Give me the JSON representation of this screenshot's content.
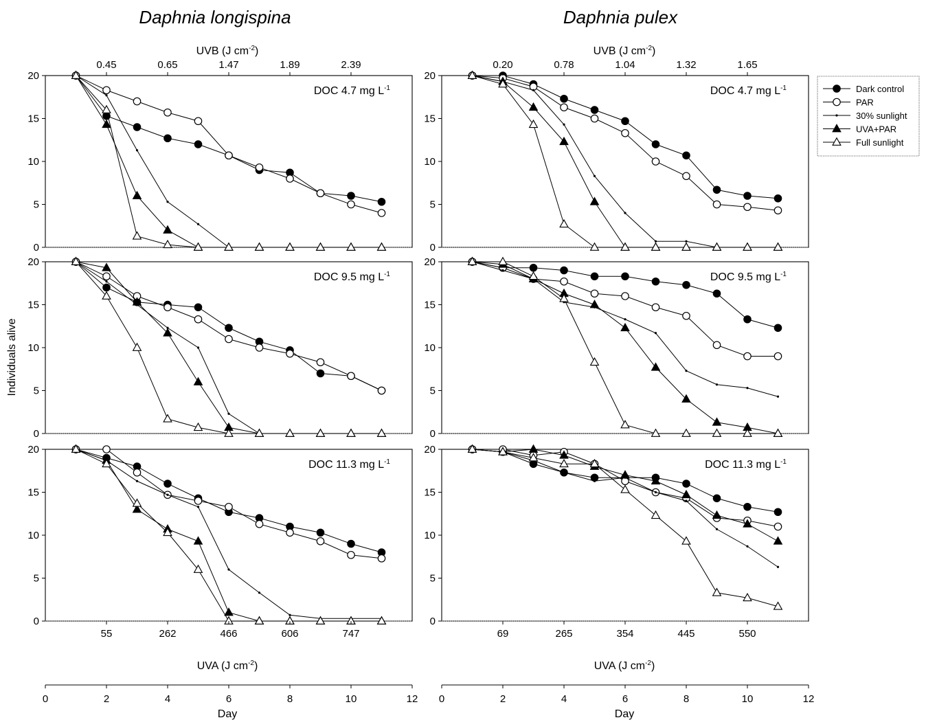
{
  "panels_layout": {
    "columns": [
      {
        "species": "Daphnia longispina",
        "top_axis_label": "UVB (J cm",
        "top_axis_label_sup": "-2",
        "top_axis_label_end": ")",
        "uvb_ticks": [
          {
            "day": 2,
            "label": "0.45"
          },
          {
            "day": 4,
            "label": "0.65"
          },
          {
            "day": 6,
            "label": "1.47"
          },
          {
            "day": 8,
            "label": "1.89"
          },
          {
            "day": 10,
            "label": "2.39"
          }
        ],
        "uva_label": "UVA (J cm",
        "uva_label_sup": "-2",
        "uva_label_end": ")",
        "uva_ticks": [
          {
            "day": 2,
            "label": "55"
          },
          {
            "day": 4,
            "label": "262"
          },
          {
            "day": 6,
            "label": "466"
          },
          {
            "day": 8,
            "label": "606"
          },
          {
            "day": 10,
            "label": "747"
          }
        ]
      },
      {
        "species": "Daphnia pulex",
        "top_axis_label": "UVB (J cm",
        "top_axis_label_sup": "-2",
        "top_axis_label_end": ")",
        "uvb_ticks": [
          {
            "day": 2,
            "label": "0.20"
          },
          {
            "day": 4,
            "label": "0.78"
          },
          {
            "day": 6,
            "label": "1.04"
          },
          {
            "day": 8,
            "label": "1.32"
          },
          {
            "day": 10,
            "label": "1.65"
          }
        ],
        "uva_label": "UVA (J cm",
        "uva_label_sup": "-2",
        "uva_label_end": ")",
        "uva_ticks": [
          {
            "day": 2,
            "label": "69"
          },
          {
            "day": 4,
            "label": "265"
          },
          {
            "day": 6,
            "label": "354"
          },
          {
            "day": 8,
            "label": "445"
          },
          {
            "day": 10,
            "label": "550"
          }
        ]
      }
    ],
    "rows": [
      {
        "doc_label": "DOC 4.7 mg L",
        "doc_sup": "-1"
      },
      {
        "doc_label": "DOC 9.5 mg L",
        "doc_sup": "-1"
      },
      {
        "doc_label": "DOC 11.3 mg L",
        "doc_sup": "-1"
      }
    ]
  },
  "chart_data": {
    "type": "line",
    "ylabel": "Individuals alive",
    "xlabel": "Day",
    "xlim": [
      0,
      12
    ],
    "ylim": [
      0,
      20
    ],
    "x_ticks": [
      "0",
      "2",
      "4",
      "6",
      "8",
      "10",
      "12"
    ],
    "y_ticks": [
      "0",
      "5",
      "10",
      "15",
      "20"
    ],
    "legend": {
      "placement": "right",
      "entries": [
        {
          "name": "Dark control",
          "marker": "filled-circle"
        },
        {
          "name": "PAR",
          "marker": "open-circle"
        },
        {
          "name": "30% sunlight",
          "marker": "small-dot"
        },
        {
          "name": "UVA+PAR",
          "marker": "filled-triangle"
        },
        {
          "name": "Full sunlight",
          "marker": "open-triangle"
        }
      ]
    },
    "panels": [
      {
        "species": "Daphnia longispina",
        "doc": "DOC 4.7 mg L-1",
        "x": [
          1,
          2,
          3,
          4,
          5,
          6,
          7,
          8,
          9,
          10,
          11
        ],
        "series": [
          {
            "name": "Dark control",
            "values": [
              20,
              15.3,
              14,
              12.7,
              12,
              10.7,
              9,
              8.7,
              6.3,
              6,
              5.3
            ]
          },
          {
            "name": "PAR",
            "values": [
              20,
              18.3,
              17,
              15.7,
              14.7,
              10.7,
              9.3,
              8,
              6.3,
              5,
              4
            ]
          },
          {
            "name": "30% sunlight",
            "values": [
              20,
              17.7,
              11.3,
              5.3,
              2.7,
              0,
              0,
              0,
              0,
              0,
              0
            ]
          },
          {
            "name": "UVA+PAR",
            "values": [
              20,
              14.3,
              6,
              2,
              0,
              0,
              0,
              0,
              0,
              0,
              0
            ]
          },
          {
            "name": "Full sunlight",
            "values": [
              20,
              16,
              1.3,
              0.3,
              0,
              0,
              0,
              0,
              0,
              0,
              0
            ]
          }
        ]
      },
      {
        "species": "Daphnia pulex",
        "doc": "DOC 4.7 mg L-1",
        "x": [
          1,
          2,
          3,
          4,
          5,
          6,
          7,
          8,
          9,
          10,
          11
        ],
        "series": [
          {
            "name": "Dark control",
            "values": [
              20,
              20,
              19,
              17.3,
              16,
              14.7,
              12,
              10.7,
              6.7,
              6,
              5.7
            ]
          },
          {
            "name": "PAR",
            "values": [
              20,
              19.7,
              18.7,
              16.3,
              15,
              13.3,
              10,
              8.3,
              5,
              4.7,
              4.3
            ]
          },
          {
            "name": "30% sunlight",
            "values": [
              20,
              19.3,
              18.3,
              14.3,
              8.3,
              4,
              0.7,
              0.7,
              0,
              0,
              0
            ]
          },
          {
            "name": "UVA+PAR",
            "values": [
              20,
              19.3,
              16.3,
              12.3,
              5.3,
              0,
              0,
              0,
              0,
              0,
              0
            ]
          },
          {
            "name": "Full sunlight",
            "values": [
              20,
              19,
              14.3,
              2.7,
              0,
              0,
              0,
              0,
              0,
              0,
              0
            ]
          }
        ]
      },
      {
        "species": "Daphnia longispina",
        "doc": "DOC 9.5 mg L-1",
        "x": [
          1,
          2,
          3,
          4,
          5,
          6,
          7,
          8,
          9,
          10,
          11
        ],
        "series": [
          {
            "name": "Dark control",
            "values": [
              20,
              17,
              15.3,
              15,
              14.7,
              12.3,
              10.7,
              9.7,
              7,
              6.7,
              5
            ]
          },
          {
            "name": "PAR",
            "values": [
              20,
              18.3,
              16,
              14.7,
              13.3,
              11,
              10,
              9.3,
              8.3,
              6.7,
              5
            ]
          },
          {
            "name": "30% sunlight",
            "values": [
              20,
              17.7,
              15,
              12.3,
              10,
              2.3,
              0,
              0,
              0,
              0,
              0
            ]
          },
          {
            "name": "UVA+PAR",
            "values": [
              20,
              19.3,
              15.3,
              11.7,
              6,
              0.7,
              0,
              0,
              0,
              0,
              0
            ]
          },
          {
            "name": "Full sunlight",
            "values": [
              20,
              16,
              10,
              1.7,
              0.7,
              0,
              0,
              0,
              0,
              0,
              0
            ]
          }
        ]
      },
      {
        "species": "Daphnia pulex",
        "doc": "DOC 9.5 mg L-1",
        "x": [
          1,
          2,
          3,
          4,
          5,
          6,
          7,
          8,
          9,
          10,
          11
        ],
        "series": [
          {
            "name": "Dark control",
            "values": [
              20,
              19.3,
              19.3,
              19,
              18.3,
              18.3,
              17.7,
              17.3,
              16.3,
              13.3,
              12.3
            ]
          },
          {
            "name": "PAR",
            "values": [
              20,
              19.3,
              18,
              17.7,
              16.3,
              16,
              14.7,
              13.7,
              10.3,
              9,
              9
            ]
          },
          {
            "name": "30% sunlight",
            "values": [
              20,
              19,
              18,
              15.3,
              14.7,
              13.3,
              11.7,
              7.3,
              5.7,
              5.3,
              4.3
            ]
          },
          {
            "name": "UVA+PAR",
            "values": [
              20,
              19.7,
              18,
              16.3,
              15,
              12.3,
              7.7,
              4,
              1.3,
              0.7,
              0
            ]
          },
          {
            "name": "Full sunlight",
            "values": [
              20,
              20,
              18.3,
              15.7,
              8.3,
              1,
              0,
              0,
              0,
              0,
              0
            ]
          }
        ]
      },
      {
        "species": "Daphnia longispina",
        "doc": "DOC 11.3 mg L-1",
        "x": [
          1,
          2,
          3,
          4,
          5,
          6,
          7,
          8,
          9,
          10,
          11
        ],
        "series": [
          {
            "name": "Dark control",
            "values": [
              20,
              19,
              18,
              16,
              14.3,
              12.7,
              12,
              11,
              10.3,
              9,
              8
            ]
          },
          {
            "name": "PAR",
            "values": [
              20,
              20,
              17.3,
              14.7,
              14,
              13.3,
              11.3,
              10.3,
              9.3,
              7.7,
              7.3
            ]
          },
          {
            "name": "30% sunlight",
            "values": [
              20,
              18.7,
              16.3,
              14.7,
              13.3,
              6,
              3.3,
              0.7,
              0.3,
              0.3,
              0.3
            ]
          },
          {
            "name": "UVA+PAR",
            "values": [
              20,
              18.7,
              13,
              10.7,
              9.3,
              1,
              0,
              0,
              0,
              0,
              0
            ]
          },
          {
            "name": "Full sunlight",
            "values": [
              20,
              18.3,
              13.7,
              10.3,
              6,
              0,
              0,
              0,
              0,
              0,
              0
            ]
          }
        ]
      },
      {
        "species": "Daphnia pulex",
        "doc": "DOC 11.3 mg L-1",
        "x": [
          1,
          2,
          3,
          4,
          5,
          6,
          7,
          8,
          9,
          10,
          11
        ],
        "series": [
          {
            "name": "Dark control",
            "values": [
              20,
              19.7,
              18.3,
              17.3,
              16.7,
              16.7,
              16.7,
              16,
              14.3,
              13.3,
              12.7
            ]
          },
          {
            "name": "PAR",
            "values": [
              20,
              20,
              19.3,
              19.7,
              18.3,
              16.3,
              15,
              14.3,
              12,
              11.7,
              11
            ]
          },
          {
            "name": "30% sunlight",
            "values": [
              20,
              19.7,
              18.7,
              17.3,
              16.3,
              16.7,
              15,
              14,
              10.7,
              8.7,
              6.3
            ]
          },
          {
            "name": "UVA+PAR",
            "values": [
              20,
              19.7,
              20,
              19.3,
              18,
              17,
              16.3,
              14.7,
              12.3,
              11.3,
              9.3
            ]
          },
          {
            "name": "Full sunlight",
            "values": [
              20,
              19.7,
              19,
              18.3,
              18.3,
              15.3,
              12.3,
              9.3,
              3.3,
              2.7,
              1.7
            ]
          }
        ]
      }
    ]
  }
}
